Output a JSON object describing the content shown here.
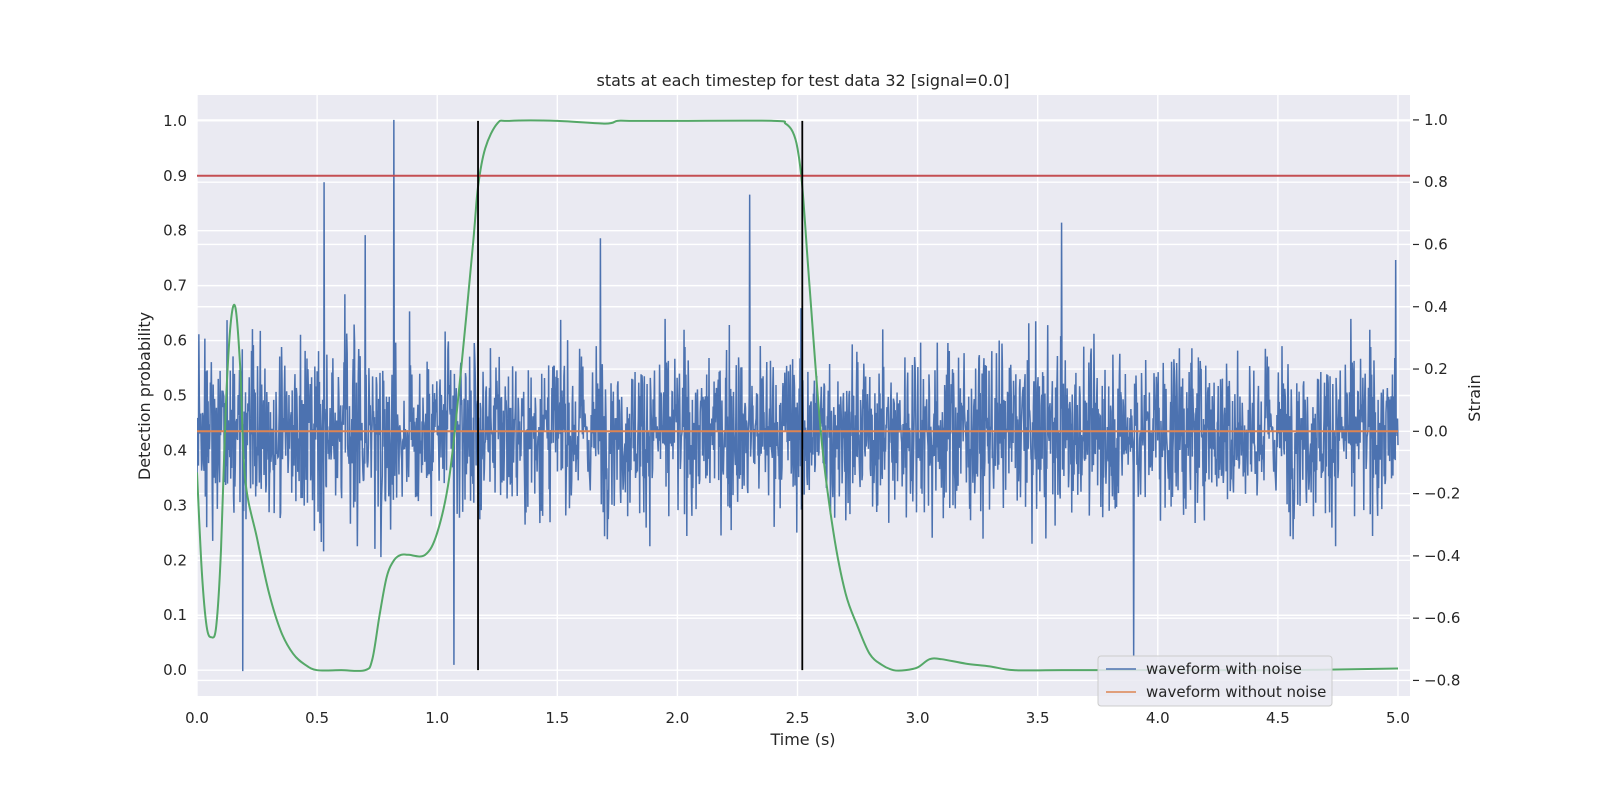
{
  "chart_data": {
    "type": "line",
    "title": "stats at each timestep for test data 32 [signal=0.0]",
    "xlabel": "Time (s)",
    "ylabel": "Detection probability",
    "y2label": "Strain",
    "xlim": [
      0.0,
      5.05
    ],
    "ylim": [
      -0.047,
      1.047
    ],
    "y2lim": [
      -0.85,
      1.08
    ],
    "x_ticks": [
      "0.0",
      "0.5",
      "1.0",
      "1.5",
      "2.0",
      "2.5",
      "3.0",
      "3.5",
      "4.0",
      "4.5",
      "5.0"
    ],
    "y_ticks": [
      "0.0",
      "0.1",
      "0.2",
      "0.3",
      "0.4",
      "0.5",
      "0.6",
      "0.7",
      "0.8",
      "0.9",
      "1.0"
    ],
    "y2_ticks": [
      "−0.8",
      "−0.6",
      "−0.4",
      "−0.2",
      "0.0",
      "0.2",
      "0.4",
      "0.6",
      "0.8",
      "1.0"
    ],
    "grid": true,
    "legend_position": "lower-right",
    "colors": {
      "background": "#eaeaf2",
      "grid": "#ffffff",
      "noisy": "#4c72b0",
      "clean": "#dd8452",
      "probability": "#55a868",
      "threshold": "#c44e52",
      "markers": "#000000"
    },
    "threshold": 0.9,
    "vertical_markers": [
      1.17,
      2.52
    ],
    "probability_curve": {
      "x": [
        0.0,
        0.02,
        0.04,
        0.06,
        0.08,
        0.1,
        0.12,
        0.14,
        0.16,
        0.18,
        0.2,
        0.25,
        0.3,
        0.35,
        0.4,
        0.45,
        0.5,
        0.6,
        0.7,
        0.73,
        0.76,
        0.79,
        0.82,
        0.85,
        0.88,
        0.95,
        1.0,
        1.05,
        1.1,
        1.15,
        1.17,
        1.2,
        1.25,
        1.3,
        1.5,
        1.7,
        1.75,
        1.8,
        2.0,
        2.4,
        2.45,
        2.48,
        2.5,
        2.52,
        2.55,
        2.6,
        2.65,
        2.7,
        2.75,
        2.8,
        2.85,
        2.9,
        2.95,
        3.0,
        3.05,
        3.1,
        3.2,
        3.3,
        3.4,
        3.6,
        4.0,
        4.5,
        5.0
      ],
      "y": [
        0.36,
        0.18,
        0.08,
        0.06,
        0.08,
        0.22,
        0.48,
        0.63,
        0.66,
        0.55,
        0.35,
        0.24,
        0.14,
        0.07,
        0.03,
        0.01,
        0.0,
        0.0,
        0.0,
        0.02,
        0.1,
        0.17,
        0.2,
        0.21,
        0.21,
        0.21,
        0.25,
        0.35,
        0.55,
        0.78,
        0.88,
        0.95,
        0.995,
        1.0,
        1.0,
        0.995,
        1.0,
        1.0,
        1.0,
        1.0,
        0.995,
        0.98,
        0.95,
        0.88,
        0.7,
        0.42,
        0.25,
        0.14,
        0.08,
        0.03,
        0.01,
        0.0,
        0.0,
        0.005,
        0.02,
        0.02,
        0.012,
        0.007,
        0.0,
        0.0,
        0.0,
        0.0,
        0.003
      ]
    },
    "series": [
      {
        "name": "waveform with noise"
      },
      {
        "name": "waveform without noise"
      }
    ],
    "noisy_waveform": {
      "x_range": [
        0.0,
        5.0
      ],
      "baseline": 0.0,
      "spread": 0.13,
      "peaks": [
        {
          "x": 0.19,
          "y": -0.77
        },
        {
          "x": 0.53,
          "y": 0.8
        },
        {
          "x": 0.82,
          "y": 1.0
        },
        {
          "x": 1.07,
          "y": -0.75
        },
        {
          "x": 2.3,
          "y": 0.76
        },
        {
          "x": 3.6,
          "y": 0.67
        },
        {
          "x": 3.9,
          "y": -0.72
        },
        {
          "x": 0.7,
          "y": 0.63
        },
        {
          "x": 1.68,
          "y": 0.62
        },
        {
          "x": 4.99,
          "y": 0.55
        }
      ]
    }
  }
}
